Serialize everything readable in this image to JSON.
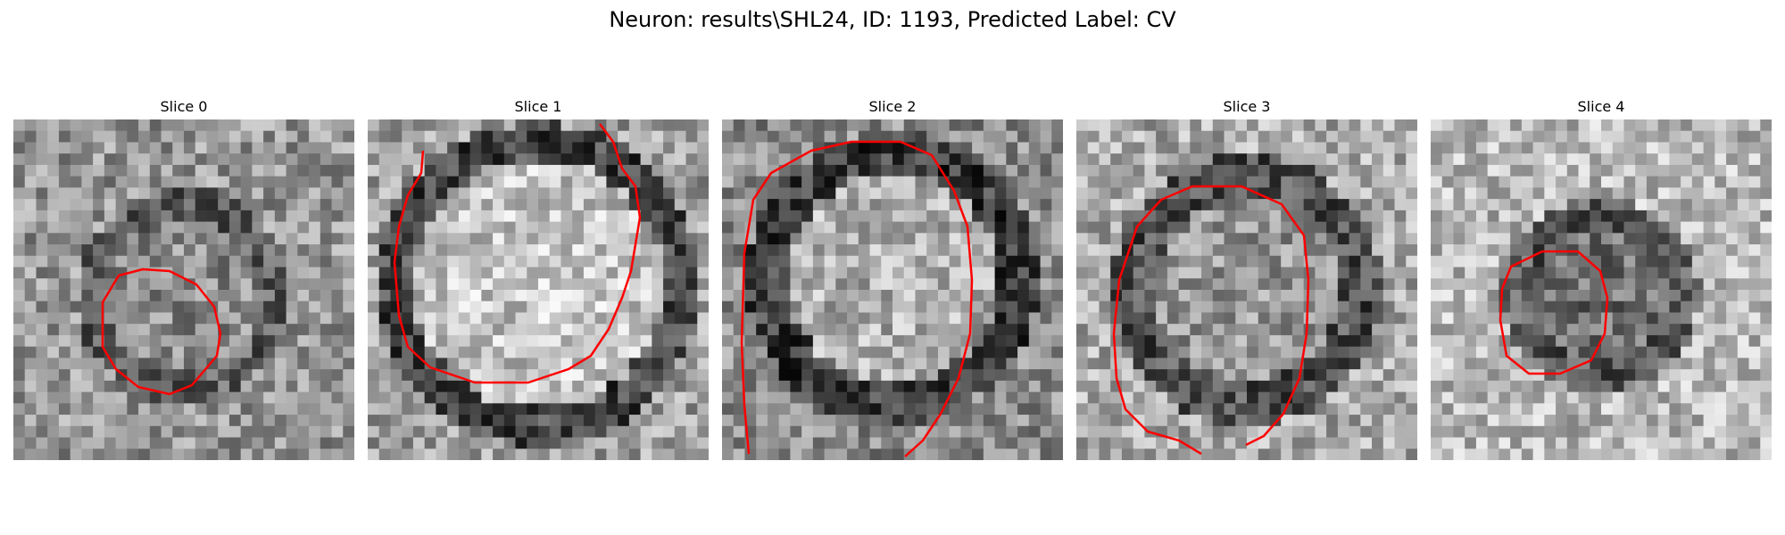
{
  "figure": {
    "title": "Neuron: results\\SHL24, ID: 1193, Predicted Label: CV"
  },
  "panels": [
    {
      "title": "Slice 0"
    },
    {
      "title": "Slice 1"
    },
    {
      "title": "Slice 2"
    },
    {
      "title": "Slice 3"
    },
    {
      "title": "Slice 4"
    }
  ],
  "colors": {
    "contour": "#ff0000",
    "background": "#ffffff"
  }
}
